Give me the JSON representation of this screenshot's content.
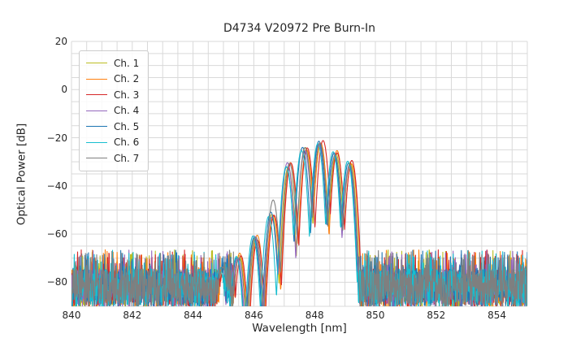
{
  "figure": {
    "background": "#ffffff",
    "text_color": "#262626",
    "grid_color": "#d9d9d9",
    "legend_border_color": "#cccccc"
  },
  "chart_data": {
    "type": "line",
    "title": "D4734 V20972 Pre Burn-In",
    "xlabel": "Wavelength [nm]",
    "ylabel": "Optical Power [dB]",
    "xlim": [
      840,
      855
    ],
    "ylim": [
      -90,
      20
    ],
    "x_major_ticks": [
      840,
      842,
      844,
      846,
      848,
      850,
      852,
      854
    ],
    "x_major_tick_labels": [
      "840",
      "842",
      "844",
      "846",
      "848",
      "850",
      "852",
      "854"
    ],
    "y_major_ticks": [
      20,
      0,
      -20,
      -40,
      -60,
      -80
    ],
    "y_major_tick_labels": [
      "20",
      "0",
      "−20",
      "−40",
      "−60",
      "−80"
    ],
    "x_minor_grid_step_nm": 0.5,
    "y_minor_grid_step_db": 5,
    "grid": "both x and y, minor gridlines on, light gray",
    "legend_position": "upper left",
    "noise_floor": {
      "mean_top_db": -74.5,
      "spread_db": 16,
      "spike_rate": 0.09,
      "spike_top_db": -66.5,
      "clip_bottom_db": -90
    },
    "signal_window_nm": [
      845.32,
      849.5
    ],
    "lobe_falloff_db_per_nm2": 520,
    "envelope_lobes": [
      {
        "center_nm": 844.95,
        "peak_db": -74.5
      },
      {
        "center_nm": 845.5,
        "peak_db": -69
      },
      {
        "center_nm": 846.05,
        "peak_db": -61.5
      },
      {
        "center_nm": 846.6,
        "peak_db": -52
      },
      {
        "center_nm": 847.15,
        "peak_db": -31.5
      },
      {
        "center_nm": 847.68,
        "peak_db": -24.5
      },
      {
        "center_nm": 848.18,
        "peak_db": -21.5
      },
      {
        "center_nm": 848.68,
        "peak_db": -26.5
      },
      {
        "center_nm": 849.16,
        "peak_db": -30.5
      }
    ],
    "series": [
      {
        "name": "Ch. 1",
        "color": "#bcbd22",
        "offset_nm": 0.0
      },
      {
        "name": "Ch. 2",
        "color": "#ff7f0e",
        "offset_nm": 0.045
      },
      {
        "name": "Ch. 3",
        "color": "#d62728",
        "offset_nm": 0.075
      },
      {
        "name": "Ch. 4",
        "color": "#9467bd",
        "offset_nm": -0.025
      },
      {
        "name": "Ch. 5",
        "color": "#1f77b4",
        "offset_nm": -0.055
      },
      {
        "name": "Ch. 6",
        "color": "#17becf",
        "offset_nm": -0.095
      },
      {
        "name": "Ch. 7",
        "color": "#7f7f7f",
        "offset_nm": 0.015,
        "lobe_boost_db": {
          "3": 6
        }
      }
    ]
  }
}
